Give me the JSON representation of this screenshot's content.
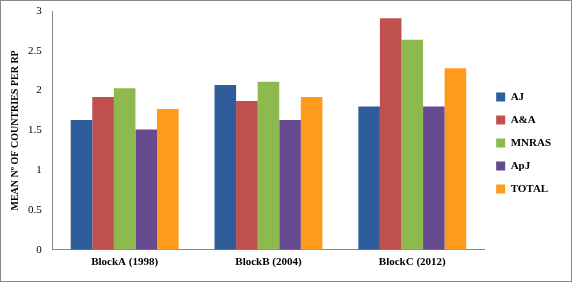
{
  "chart_data": {
    "type": "bar",
    "y_label": "MEAN Nº OF COUNTRIES PER RP",
    "categories": [
      "BlockA (1998)",
      "BlockB (2004)",
      "BlockC (2012)"
    ],
    "series": [
      {
        "name": "AJ",
        "color": "#2f5d9b",
        "values": [
          1.63,
          2.07,
          1.8
        ]
      },
      {
        "name": "A&A",
        "color": "#c0504d",
        "values": [
          1.92,
          1.87,
          2.91
        ]
      },
      {
        "name": "MNRAS",
        "color": "#8cba4f",
        "values": [
          2.03,
          2.11,
          2.64
        ]
      },
      {
        "name": "ApJ",
        "color": "#664b8e",
        "values": [
          1.51,
          1.63,
          1.8
        ]
      },
      {
        "name": "TOTAL",
        "color": "#ff9a1a",
        "values": [
          1.77,
          1.92,
          2.28
        ]
      }
    ],
    "ylim": [
      0,
      3
    ],
    "yticks": [
      0,
      0.5,
      1,
      1.5,
      2,
      2.5,
      3
    ],
    "grid": false,
    "legend": "right"
  }
}
